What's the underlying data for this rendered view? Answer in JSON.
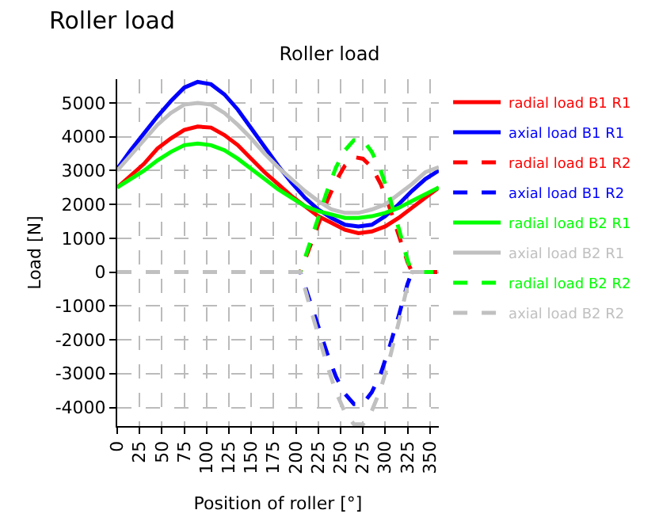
{
  "chart_data": {
    "type": "line",
    "title": "Roller load",
    "xlabel": "Position of roller [°]",
    "ylabel": "Load [N]",
    "annotations": [
      "Roller load"
    ],
    "xlim": [
      0,
      360
    ],
    "xticks": [
      0,
      25,
      50,
      75,
      100,
      125,
      150,
      175,
      200,
      225,
      250,
      275,
      300,
      325,
      350
    ],
    "ylim": [
      -4550,
      5700
    ],
    "yticks": [
      -4000,
      -3000,
      -2000,
      -1000,
      0,
      1000,
      2000,
      3000,
      4000,
      5000
    ],
    "grid": true,
    "legend": "right",
    "marker": "none",
    "series": [
      {
        "name": "radial load B1 R1",
        "color": "#ff0000",
        "line_style": "solid",
        "x": [
          0,
          15,
          30,
          45,
          60,
          75,
          90,
          105,
          120,
          135,
          150,
          165,
          180,
          195,
          210,
          225,
          240,
          255,
          270,
          285,
          300,
          315,
          330,
          345,
          360
        ],
        "values": [
          2500,
          2850,
          3200,
          3650,
          3950,
          4200,
          4300,
          4270,
          4050,
          3750,
          3350,
          2950,
          2600,
          2250,
          1950,
          1650,
          1450,
          1250,
          1150,
          1200,
          1350,
          1600,
          1900,
          2200,
          2500
        ]
      },
      {
        "name": "axial load B1 R1",
        "color": "#0000ff",
        "line_style": "solid",
        "x": [
          0,
          15,
          30,
          45,
          60,
          75,
          90,
          105,
          120,
          135,
          150,
          165,
          180,
          195,
          210,
          225,
          240,
          255,
          270,
          285,
          300,
          315,
          330,
          345,
          360
        ],
        "values": [
          3050,
          3600,
          4100,
          4600,
          5050,
          5450,
          5620,
          5550,
          5250,
          4800,
          4250,
          3700,
          3150,
          2650,
          2200,
          1850,
          1600,
          1400,
          1350,
          1400,
          1650,
          2000,
          2400,
          2750,
          3000
        ]
      },
      {
        "name": "radial load B1 R2",
        "color": "#ff0000",
        "line_style": "dashed",
        "x": [
          0,
          205,
          215,
          225,
          235,
          245,
          255,
          265,
          275,
          285,
          295,
          305,
          315,
          325,
          330,
          360
        ],
        "values": [
          0,
          0,
          700,
          1400,
          2100,
          2700,
          3150,
          3400,
          3350,
          3100,
          2600,
          1900,
          1100,
          300,
          0,
          0
        ]
      },
      {
        "name": "axial load B1 R2",
        "color": "#0000ff",
        "line_style": "dashed",
        "x": [
          0,
          205,
          215,
          225,
          235,
          245,
          255,
          265,
          275,
          285,
          295,
          305,
          315,
          325,
          330,
          360
        ],
        "values": [
          0,
          0,
          -800,
          -1600,
          -2400,
          -3100,
          -3600,
          -3900,
          -3900,
          -3550,
          -3000,
          -2200,
          -1300,
          -350,
          0,
          0
        ]
      },
      {
        "name": "radial load B2 R1",
        "color": "#00ff00",
        "line_style": "solid",
        "x": [
          0,
          15,
          30,
          45,
          60,
          75,
          90,
          105,
          120,
          135,
          150,
          165,
          180,
          195,
          210,
          225,
          240,
          255,
          270,
          285,
          300,
          315,
          330,
          345,
          360
        ],
        "values": [
          2500,
          2750,
          3000,
          3300,
          3550,
          3750,
          3800,
          3750,
          3600,
          3350,
          3050,
          2750,
          2450,
          2200,
          1950,
          1800,
          1700,
          1600,
          1600,
          1650,
          1750,
          1900,
          2100,
          2300,
          2500
        ]
      },
      {
        "name": "axial load B2 R1",
        "color": "#c0c0c0",
        "line_style": "solid",
        "x": [
          0,
          15,
          30,
          45,
          60,
          75,
          90,
          105,
          120,
          135,
          150,
          165,
          180,
          195,
          210,
          225,
          240,
          255,
          270,
          285,
          300,
          315,
          330,
          345,
          360
        ],
        "values": [
          3000,
          3450,
          3900,
          4350,
          4700,
          4950,
          5000,
          4950,
          4700,
          4350,
          3950,
          3500,
          3100,
          2750,
          2400,
          2100,
          1850,
          1750,
          1750,
          1850,
          2000,
          2300,
          2600,
          2950,
          3100
        ]
      },
      {
        "name": "radial load B2 R2",
        "color": "#00ff00",
        "line_style": "dashed",
        "x": [
          0,
          205,
          215,
          225,
          235,
          245,
          255,
          265,
          275,
          285,
          295,
          305,
          315,
          325,
          330,
          360
        ],
        "values": [
          0,
          0,
          800,
          1600,
          2400,
          3100,
          3600,
          3900,
          3900,
          3550,
          3000,
          2200,
          1300,
          350,
          0,
          0
        ]
      },
      {
        "name": "axial load B2 R2",
        "color": "#c0c0c0",
        "line_style": "dashed",
        "x": [
          0,
          205,
          215,
          225,
          235,
          245,
          255,
          265,
          275,
          285,
          295,
          305,
          315,
          325,
          330,
          360
        ],
        "values": [
          0,
          0,
          -950,
          -1850,
          -2750,
          -3550,
          -4150,
          -4500,
          -4500,
          -4100,
          -3450,
          -2550,
          -1500,
          -400,
          0,
          0
        ]
      }
    ]
  }
}
